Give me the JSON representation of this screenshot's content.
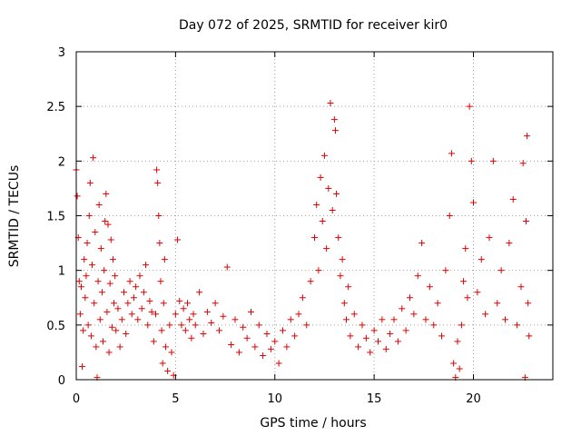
{
  "chart_data": {
    "type": "scatter",
    "title": "Day 072 of 2025, SRMTID for receiver kir0",
    "xlabel": "GPS time / hours",
    "ylabel": "SRMTID / TECUs",
    "xlim": [
      0,
      24
    ],
    "ylim": [
      0,
      3
    ],
    "xticks": [
      "0",
      "5",
      "10",
      "15",
      "20"
    ],
    "yticks": [
      "0",
      "0.5",
      "1",
      "1.5",
      "2",
      "2.5",
      "3"
    ],
    "grid": true,
    "marker": "+",
    "color": "#e00000",
    "series": [
      {
        "name": "SRMTID",
        "points": [
          [
            0.0,
            1.92
          ],
          [
            0.05,
            1.68
          ],
          [
            0.1,
            1.3
          ],
          [
            0.15,
            0.9
          ],
          [
            0.2,
            0.6
          ],
          [
            0.25,
            0.85
          ],
          [
            0.3,
            0.12
          ],
          [
            0.35,
            0.45
          ],
          [
            0.4,
            1.1
          ],
          [
            0.45,
            0.75
          ],
          [
            0.5,
            0.95
          ],
          [
            0.55,
            1.25
          ],
          [
            0.6,
            0.5
          ],
          [
            0.65,
            1.5
          ],
          [
            0.7,
            1.8
          ],
          [
            0.75,
            0.4
          ],
          [
            0.8,
            1.05
          ],
          [
            0.85,
            2.03
          ],
          [
            0.9,
            0.7
          ],
          [
            0.95,
            1.35
          ],
          [
            1.0,
            0.3
          ],
          [
            1.05,
            0.02
          ],
          [
            1.1,
            0.9
          ],
          [
            1.15,
            1.6
          ],
          [
            1.2,
            0.55
          ],
          [
            1.25,
            1.2
          ],
          [
            1.3,
            0.8
          ],
          [
            1.35,
            0.35
          ],
          [
            1.4,
            1.0
          ],
          [
            1.45,
            1.45
          ],
          [
            1.5,
            1.7
          ],
          [
            1.55,
            0.62
          ],
          [
            1.6,
            1.42
          ],
          [
            1.65,
            0.25
          ],
          [
            1.7,
            0.88
          ],
          [
            1.75,
            1.28
          ],
          [
            1.8,
            0.48
          ],
          [
            1.85,
            1.1
          ],
          [
            1.9,
            0.7
          ],
          [
            1.95,
            0.95
          ],
          [
            2.0,
            0.45
          ],
          [
            2.1,
            0.65
          ],
          [
            2.2,
            0.3
          ],
          [
            2.3,
            0.55
          ],
          [
            2.4,
            0.8
          ],
          [
            2.5,
            0.42
          ],
          [
            2.6,
            0.7
          ],
          [
            2.7,
            0.9
          ],
          [
            2.8,
            0.6
          ],
          [
            2.9,
            0.75
          ],
          [
            3.0,
            0.85
          ],
          [
            3.1,
            0.55
          ],
          [
            3.2,
            0.95
          ],
          [
            3.3,
            0.65
          ],
          [
            3.4,
            0.8
          ],
          [
            3.5,
            1.05
          ],
          [
            3.6,
            0.5
          ],
          [
            3.7,
            0.72
          ],
          [
            3.8,
            0.62
          ],
          [
            3.9,
            0.35
          ],
          [
            4.0,
            0.6
          ],
          [
            4.05,
            1.92
          ],
          [
            4.1,
            1.8
          ],
          [
            4.15,
            1.5
          ],
          [
            4.2,
            1.25
          ],
          [
            4.25,
            0.9
          ],
          [
            4.3,
            0.45
          ],
          [
            4.35,
            0.15
          ],
          [
            4.4,
            0.7
          ],
          [
            4.45,
            1.1
          ],
          [
            4.5,
            0.3
          ],
          [
            4.6,
            0.08
          ],
          [
            4.7,
            0.5
          ],
          [
            4.8,
            0.25
          ],
          [
            4.9,
            0.04
          ],
          [
            5.0,
            0.6
          ],
          [
            5.1,
            1.28
          ],
          [
            5.2,
            0.72
          ],
          [
            5.3,
            0.5
          ],
          [
            5.4,
            0.65
          ],
          [
            5.5,
            0.45
          ],
          [
            5.6,
            0.7
          ],
          [
            5.7,
            0.55
          ],
          [
            5.8,
            0.38
          ],
          [
            5.9,
            0.6
          ],
          [
            6.0,
            0.5
          ],
          [
            6.2,
            0.8
          ],
          [
            6.4,
            0.42
          ],
          [
            6.6,
            0.62
          ],
          [
            6.8,
            0.52
          ],
          [
            7.0,
            0.7
          ],
          [
            7.2,
            0.45
          ],
          [
            7.4,
            0.58
          ],
          [
            7.6,
            1.03
          ],
          [
            7.8,
            0.32
          ],
          [
            8.0,
            0.55
          ],
          [
            8.2,
            0.25
          ],
          [
            8.4,
            0.48
          ],
          [
            8.6,
            0.38
          ],
          [
            8.8,
            0.62
          ],
          [
            9.0,
            0.3
          ],
          [
            9.2,
            0.5
          ],
          [
            9.4,
            0.22
          ],
          [
            9.6,
            0.42
          ],
          [
            9.8,
            0.28
          ],
          [
            10.0,
            0.35
          ],
          [
            10.2,
            0.15
          ],
          [
            10.4,
            0.45
          ],
          [
            10.6,
            0.3
          ],
          [
            10.8,
            0.55
          ],
          [
            11.0,
            0.4
          ],
          [
            11.2,
            0.6
          ],
          [
            11.4,
            0.75
          ],
          [
            11.6,
            0.5
          ],
          [
            11.8,
            0.9
          ],
          [
            12.0,
            1.3
          ],
          [
            12.1,
            1.6
          ],
          [
            12.2,
            1.0
          ],
          [
            12.3,
            1.85
          ],
          [
            12.4,
            1.45
          ],
          [
            12.5,
            2.05
          ],
          [
            12.6,
            1.2
          ],
          [
            12.7,
            1.75
          ],
          [
            12.8,
            2.53
          ],
          [
            12.9,
            1.55
          ],
          [
            13.0,
            2.38
          ],
          [
            13.05,
            2.28
          ],
          [
            13.1,
            1.7
          ],
          [
            13.2,
            1.3
          ],
          [
            13.3,
            0.95
          ],
          [
            13.4,
            1.1
          ],
          [
            13.5,
            0.7
          ],
          [
            13.6,
            0.55
          ],
          [
            13.7,
            0.85
          ],
          [
            13.8,
            0.4
          ],
          [
            14.0,
            0.6
          ],
          [
            14.2,
            0.3
          ],
          [
            14.4,
            0.5
          ],
          [
            14.6,
            0.38
          ],
          [
            14.8,
            0.25
          ],
          [
            15.0,
            0.45
          ],
          [
            15.2,
            0.35
          ],
          [
            15.4,
            0.55
          ],
          [
            15.6,
            0.28
          ],
          [
            15.8,
            0.42
          ],
          [
            16.0,
            0.55
          ],
          [
            16.2,
            0.35
          ],
          [
            16.4,
            0.65
          ],
          [
            16.6,
            0.45
          ],
          [
            16.8,
            0.75
          ],
          [
            17.0,
            0.6
          ],
          [
            17.2,
            0.95
          ],
          [
            17.4,
            1.25
          ],
          [
            17.6,
            0.55
          ],
          [
            17.8,
            0.85
          ],
          [
            18.0,
            0.5
          ],
          [
            18.2,
            0.7
          ],
          [
            18.4,
            0.4
          ],
          [
            18.6,
            1.0
          ],
          [
            18.8,
            1.5
          ],
          [
            18.9,
            2.07
          ],
          [
            19.0,
            0.15
          ],
          [
            19.1,
            0.02
          ],
          [
            19.2,
            0.35
          ],
          [
            19.3,
            0.1
          ],
          [
            19.4,
            0.5
          ],
          [
            19.5,
            0.9
          ],
          [
            19.6,
            1.2
          ],
          [
            19.7,
            0.75
          ],
          [
            19.8,
            2.5
          ],
          [
            19.9,
            2.0
          ],
          [
            20.0,
            1.62
          ],
          [
            20.2,
            0.8
          ],
          [
            20.4,
            1.1
          ],
          [
            20.6,
            0.6
          ],
          [
            20.8,
            1.3
          ],
          [
            21.0,
            2.0
          ],
          [
            21.2,
            0.7
          ],
          [
            21.4,
            1.0
          ],
          [
            21.6,
            0.55
          ],
          [
            21.8,
            1.25
          ],
          [
            22.0,
            1.65
          ],
          [
            22.2,
            0.5
          ],
          [
            22.4,
            0.85
          ],
          [
            22.5,
            1.98
          ],
          [
            22.6,
            0.02
          ],
          [
            22.65,
            1.45
          ],
          [
            22.7,
            2.23
          ],
          [
            22.75,
            0.7
          ],
          [
            22.8,
            0.4
          ]
        ]
      }
    ]
  }
}
